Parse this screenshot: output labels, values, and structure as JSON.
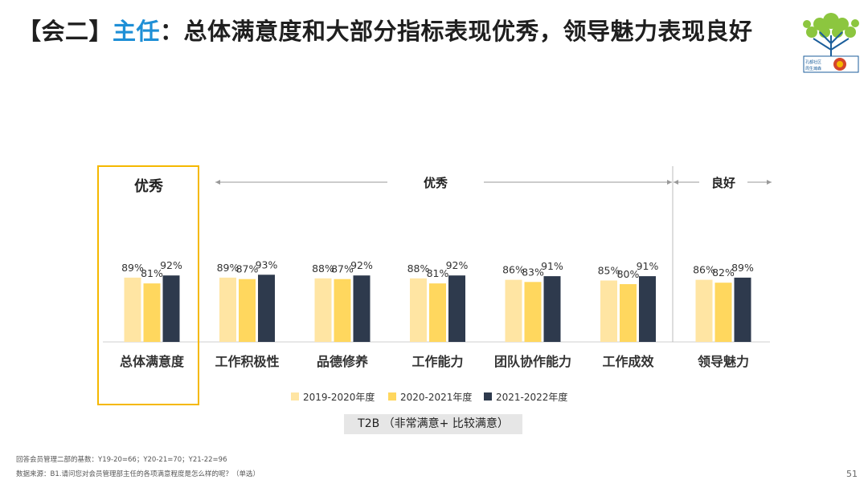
{
  "header": {
    "title_prefix": "【会二】",
    "title_highlight": "主任",
    "title_rest": "：总体满意度和大部分指标表现优秀，领导魅力表现良好",
    "logo_text_1": "孔都社区",
    "logo_text_2": "周生瀚森"
  },
  "colors": {
    "highlight_blue": "#1e8fd6",
    "box_gold": "#f5b800",
    "series": [
      "#ffe5a3",
      "#ffd75e",
      "#2e3a4d"
    ]
  },
  "chart_data": {
    "type": "bar",
    "title": "T2B",
    "categories": [
      "总体满意度",
      "工作积极性",
      "品德修养",
      "工作能力",
      "团队协作能力",
      "工作成效",
      "领导魅力"
    ],
    "series": [
      {
        "name": "2019-2020年度",
        "values": [
          89,
          89,
          88,
          88,
          86,
          85,
          86
        ]
      },
      {
        "name": "2020-2021年度",
        "values": [
          81,
          87,
          87,
          81,
          83,
          80,
          82
        ]
      },
      {
        "name": "2021-2022年度",
        "values": [
          92,
          93,
          92,
          92,
          91,
          91,
          89
        ]
      }
    ],
    "data_label_suffix": "%",
    "ylim": [
      0,
      400
    ],
    "groups": [
      {
        "label": "优秀",
        "from": 0,
        "to": 0,
        "boxed": true
      },
      {
        "label": "优秀",
        "from": 1,
        "to": 5,
        "boxed": false
      },
      {
        "label": "良好",
        "from": 6,
        "to": 6,
        "boxed": false
      }
    ],
    "footer_label": "T2B （非常满意+ 比较满意）"
  },
  "footnotes": {
    "base": "回答会员管理二部的基数：Y19-20=66；Y20-21=70；Y21-22=96",
    "source": "数据来源：B1.请问您对会员管理部主任的各项满意程度是怎么样的呢？（单选）",
    "page": "51"
  }
}
